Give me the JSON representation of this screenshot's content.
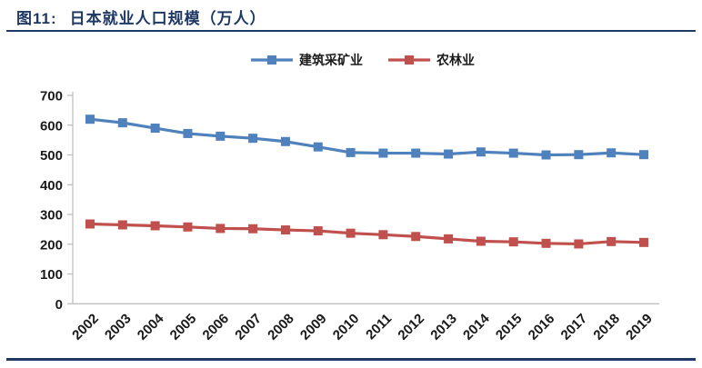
{
  "header": {
    "figure_label": "图11:",
    "figure_title": "日本就业人口规模（万人）"
  },
  "colors": {
    "accent_navy": "#1F3864",
    "axis_gray": "#BFBFBF",
    "tick_text": "#1A1A1A",
    "legend_text": "#1A1A1A",
    "series_blue": "#4F81BD",
    "series_red": "#C0504D"
  },
  "chart_data": {
    "type": "line",
    "title": "日本就业人口规模（万人）",
    "xlabel": "",
    "ylabel": "",
    "categories": [
      "2002",
      "2003",
      "2004",
      "2005",
      "2006",
      "2007",
      "2008",
      "2009",
      "2010",
      "2011",
      "2012",
      "2013",
      "2014",
      "2015",
      "2016",
      "2017",
      "2018",
      "2019"
    ],
    "series": [
      {
        "name": "建筑采矿业",
        "color": "#4F81BD",
        "marker": "square",
        "values": [
          620,
          608,
          590,
          572,
          563,
          556,
          545,
          527,
          508,
          506,
          506,
          503,
          510,
          506,
          500,
          501,
          507,
          501
        ]
      },
      {
        "name": "农林业",
        "color": "#C0504D",
        "marker": "square",
        "values": [
          268,
          265,
          262,
          258,
          253,
          252,
          248,
          245,
          237,
          232,
          226,
          218,
          210,
          208,
          203,
          201,
          209,
          206
        ]
      }
    ],
    "ylim": [
      0,
      700
    ],
    "ytick_step": 100,
    "grid": false,
    "legend_position": "top-center",
    "x_label_rotation": -45
  }
}
